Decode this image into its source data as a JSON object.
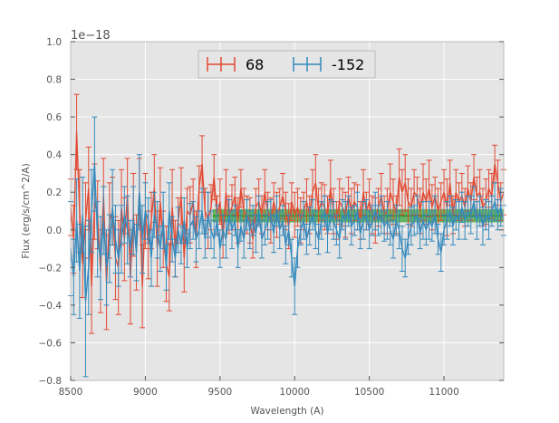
{
  "chart_data": {
    "type": "line",
    "title": "",
    "xlabel": "Wavelength (A)",
    "ylabel": "Flux (erg/s/cm^2/A)",
    "offset_text": "1e−18",
    "xlim": [
      8500,
      11400
    ],
    "ylim": [
      -0.8,
      1.0
    ],
    "y_scale_exponent": -18,
    "x_ticks": [
      8500,
      9000,
      9500,
      10000,
      10500,
      11000
    ],
    "x_tick_labels": [
      "8500",
      "9000",
      "9500",
      "10000",
      "10500",
      "11000"
    ],
    "y_ticks": [
      -0.8,
      -0.6,
      -0.4,
      -0.2,
      0.0,
      0.2,
      0.4,
      0.6,
      0.8,
      1.0
    ],
    "y_tick_labels": [
      "−0.8",
      "−0.6",
      "−0.4",
      "−0.2",
      "0.0",
      "0.2",
      "0.4",
      "0.6",
      "0.8",
      "1.0"
    ],
    "grid": true,
    "legend_position": "top-center",
    "band": {
      "x_start": 9450,
      "x_end": 11400,
      "y_low": 0.04,
      "y_high": 0.11,
      "center": 0.075,
      "color": "#2ca02c"
    },
    "series": [
      {
        "name": "68",
        "color": "#E24A33",
        "x": [
          8500,
          8520,
          8540,
          8560,
          8580,
          8600,
          8620,
          8640,
          8660,
          8680,
          8700,
          8720,
          8740,
          8760,
          8780,
          8800,
          8820,
          8840,
          8860,
          8880,
          8900,
          8920,
          8940,
          8960,
          8980,
          9000,
          9020,
          9040,
          9060,
          9080,
          9100,
          9120,
          9140,
          9160,
          9180,
          9200,
          9220,
          9240,
          9260,
          9280,
          9300,
          9320,
          9340,
          9360,
          9380,
          9400,
          9420,
          9440,
          9460,
          9480,
          9500,
          9520,
          9540,
          9560,
          9580,
          9600,
          9620,
          9640,
          9660,
          9680,
          9700,
          9720,
          9740,
          9760,
          9780,
          9800,
          9820,
          9840,
          9860,
          9880,
          9900,
          9920,
          9940,
          9960,
          9980,
          10000,
          10020,
          10040,
          10060,
          10080,
          10100,
          10120,
          10140,
          10160,
          10180,
          10200,
          10220,
          10240,
          10260,
          10280,
          10300,
          10320,
          10340,
          10360,
          10380,
          10400,
          10420,
          10440,
          10460,
          10480,
          10500,
          10520,
          10540,
          10560,
          10580,
          10600,
          10620,
          10640,
          10660,
          10680,
          10700,
          10720,
          10740,
          10760,
          10780,
          10800,
          10820,
          10840,
          10860,
          10880,
          10900,
          10920,
          10940,
          10960,
          10980,
          11000,
          11020,
          11040,
          11060,
          11080,
          11100,
          11120,
          11140,
          11160,
          11180,
          11200,
          11220,
          11240,
          11260,
          11280,
          11300,
          11320,
          11340,
          11360,
          11380,
          11400
        ],
        "y": [
          0.12,
          -0.05,
          0.52,
          0.1,
          -0.18,
          0.05,
          0.22,
          -0.3,
          0.15,
          0.08,
          -0.22,
          0.18,
          -0.28,
          0.05,
          0.1,
          -0.15,
          -0.2,
          0.12,
          -0.05,
          0.18,
          -0.25,
          0.08,
          -0.12,
          0.2,
          -0.3,
          0.1,
          -0.08,
          0.05,
          0.22,
          -0.1,
          0.15,
          -0.05,
          -0.18,
          -0.25,
          0.12,
          -0.1,
          0.05,
          0.18,
          -0.15,
          0.1,
          0.08,
          0.15,
          -0.05,
          0.22,
          0.35,
          0.1,
          0.05,
          0.12,
          0.28,
          0.08,
          0.15,
          -0.05,
          0.2,
          0.08,
          0.12,
          0.18,
          0.05,
          0.22,
          0.1,
          0.08,
          0.05,
          -0.05,
          0.12,
          0.15,
          0.08,
          0.2,
          0.1,
          0.05,
          0.15,
          0.08,
          0.12,
          0.18,
          0.1,
          0.02,
          0.15,
          0.08,
          0.12,
          0.05,
          0.1,
          0.15,
          0.08,
          0.2,
          0.25,
          0.1,
          0.15,
          0.12,
          0.08,
          0.22,
          0.1,
          0.05,
          0.15,
          0.12,
          0.08,
          0.18,
          0.1,
          0.15,
          0.12,
          0.05,
          0.2,
          0.1,
          0.15,
          0.08,
          0.05,
          0.12,
          0.18,
          0.08,
          0.1,
          0.2,
          0.15,
          0.08,
          0.28,
          0.2,
          0.25,
          0.15,
          0.12,
          0.2,
          0.18,
          0.1,
          0.2,
          0.15,
          0.22,
          0.12,
          0.18,
          0.1,
          0.15,
          0.2,
          0.12,
          0.25,
          0.08,
          0.2,
          0.15,
          0.18,
          0.12,
          0.22,
          0.15,
          0.28,
          0.18,
          0.2,
          0.12,
          0.15,
          0.22,
          0.18,
          0.35,
          0.25,
          0.15,
          0.2
        ],
        "err": [
          0.15,
          0.18,
          0.2,
          0.22,
          0.18,
          0.2,
          0.22,
          0.25,
          0.2,
          0.18,
          0.22,
          0.2,
          0.25,
          0.2,
          0.18,
          0.22,
          0.25,
          0.2,
          0.22,
          0.2,
          0.25,
          0.22,
          0.2,
          0.18,
          0.22,
          0.2,
          0.18,
          0.15,
          0.18,
          0.2,
          0.18,
          0.15,
          0.2,
          0.18,
          0.2,
          0.15,
          0.12,
          0.15,
          0.18,
          0.12,
          0.15,
          0.12,
          0.15,
          0.12,
          0.15,
          0.12,
          0.15,
          0.12,
          0.12,
          0.1,
          0.12,
          0.1,
          0.12,
          0.1,
          0.12,
          0.1,
          0.12,
          0.1,
          0.12,
          0.1,
          0.12,
          0.1,
          0.1,
          0.12,
          0.1,
          0.12,
          0.1,
          0.12,
          0.1,
          0.12,
          0.1,
          0.12,
          0.1,
          0.12,
          0.1,
          0.12,
          0.1,
          0.12,
          0.1,
          0.12,
          0.1,
          0.12,
          0.15,
          0.12,
          0.1,
          0.12,
          0.1,
          0.15,
          0.12,
          0.1,
          0.12,
          0.1,
          0.12,
          0.1,
          0.12,
          0.1,
          0.12,
          0.1,
          0.12,
          0.1,
          0.12,
          0.1,
          0.12,
          0.1,
          0.12,
          0.1,
          0.12,
          0.15,
          0.12,
          0.1,
          0.15,
          0.12,
          0.15,
          0.12,
          0.1,
          0.12,
          0.1,
          0.12,
          0.15,
          0.12,
          0.15,
          0.12,
          0.1,
          0.12,
          0.1,
          0.12,
          0.15,
          0.12,
          0.1,
          0.12,
          0.1,
          0.12,
          0.1,
          0.12,
          0.1,
          0.12,
          0.1,
          0.12,
          0.1,
          0.12,
          0.1,
          0.12,
          0.1,
          0.12,
          0.1,
          0.12
        ]
      },
      {
        "name": "-152",
        "color": "#348ABD",
        "x": [
          8500,
          8520,
          8540,
          8560,
          8580,
          8600,
          8620,
          8640,
          8660,
          8680,
          8700,
          8720,
          8740,
          8760,
          8780,
          8800,
          8820,
          8840,
          8860,
          8880,
          8900,
          8920,
          8940,
          8960,
          8980,
          9000,
          9020,
          9040,
          9060,
          9080,
          9100,
          9120,
          9140,
          9160,
          9180,
          9200,
          9220,
          9240,
          9260,
          9280,
          9300,
          9320,
          9340,
          9360,
          9380,
          9400,
          9420,
          9440,
          9460,
          9480,
          9500,
          9520,
          9540,
          9560,
          9580,
          9600,
          9620,
          9640,
          9660,
          9680,
          9700,
          9720,
          9740,
          9760,
          9780,
          9800,
          9820,
          9840,
          9860,
          9880,
          9900,
          9920,
          9940,
          9960,
          9980,
          10000,
          10020,
          10040,
          10060,
          10080,
          10100,
          10120,
          10140,
          10160,
          10180,
          10200,
          10220,
          10240,
          10260,
          10280,
          10300,
          10320,
          10340,
          10360,
          10380,
          10400,
          10420,
          10440,
          10460,
          10480,
          10500,
          10520,
          10540,
          10560,
          10580,
          10600,
          10620,
          10640,
          10660,
          10680,
          10700,
          10720,
          10740,
          10760,
          10780,
          10800,
          10820,
          10840,
          10860,
          10880,
          10900,
          10920,
          10940,
          10960,
          10980,
          11000,
          11020,
          11040,
          11060,
          11080,
          11100,
          11120,
          11140,
          11160,
          11180,
          11200,
          11220,
          11240,
          11260,
          11280,
          11300,
          11320,
          11340,
          11360,
          11380,
          11400
        ],
        "y": [
          -0.1,
          -0.25,
          0.05,
          -0.22,
          0.08,
          -0.38,
          -0.2,
          0.1,
          0.35,
          -0.05,
          -0.15,
          0.05,
          -0.2,
          -0.1,
          0.12,
          -0.05,
          -0.15,
          -0.05,
          0.08,
          0.0,
          -0.1,
          0.05,
          -0.12,
          0.2,
          -0.05,
          0.1,
          0.05,
          -0.15,
          0.08,
          0.0,
          -0.1,
          0.05,
          -0.2,
          0.1,
          -0.05,
          -0.15,
          0.0,
          -0.08,
          0.05,
          -0.1,
          0.02,
          0.05,
          -0.05,
          0.0,
          0.1,
          -0.05,
          0.08,
          0.0,
          -0.05,
          0.05,
          -0.1,
          0.0,
          -0.05,
          0.08,
          0.0,
          0.05,
          -0.1,
          0.02,
          -0.05,
          0.08,
          0.0,
          0.05,
          -0.02,
          0.1,
          -0.05,
          0.0,
          0.05,
          0.08,
          -0.02,
          0.1,
          0.0,
          0.05,
          -0.08,
          0.0,
          -0.15,
          -0.3,
          -0.1,
          0.0,
          0.05,
          -0.05,
          0.02,
          0.08,
          0.0,
          -0.05,
          0.05,
          0.1,
          -0.02,
          0.08,
          0.05,
          0.0,
          -0.05,
          0.08,
          0.05,
          0.1,
          0.02,
          0.05,
          0.1,
          -0.02,
          0.05,
          0.08,
          0.0,
          0.05,
          0.1,
          0.05,
          0.08,
          0.02,
          0.05,
          0.0,
          -0.05,
          0.05,
          0.0,
          -0.1,
          -0.15,
          -0.05,
          0.02,
          0.05,
          0.08,
          -0.02,
          0.05,
          0.0,
          0.05,
          0.02,
          0.08,
          -0.05,
          -0.12,
          0.0,
          0.05,
          0.1,
          0.02,
          0.08,
          0.05,
          0.12,
          0.05,
          0.1,
          0.08,
          0.15,
          0.05,
          0.1,
          0.02,
          0.08,
          0.05,
          0.1,
          0.15,
          0.08,
          0.12,
          0.05
        ],
        "err": [
          0.25,
          0.2,
          0.22,
          0.25,
          0.2,
          0.4,
          0.25,
          0.22,
          0.25,
          0.2,
          0.22,
          0.18,
          0.2,
          0.18,
          0.2,
          0.18,
          0.15,
          0.18,
          0.15,
          0.18,
          0.15,
          0.18,
          0.15,
          0.2,
          0.18,
          0.15,
          0.12,
          0.15,
          0.12,
          0.15,
          0.12,
          0.15,
          0.12,
          0.15,
          0.12,
          0.1,
          0.12,
          0.1,
          0.12,
          0.1,
          0.12,
          0.1,
          0.12,
          0.1,
          0.12,
          0.1,
          0.12,
          0.1,
          0.1,
          0.08,
          0.1,
          0.08,
          0.1,
          0.08,
          0.1,
          0.08,
          0.1,
          0.08,
          0.1,
          0.08,
          0.1,
          0.08,
          0.1,
          0.08,
          0.1,
          0.08,
          0.1,
          0.08,
          0.1,
          0.08,
          0.1,
          0.08,
          0.1,
          0.08,
          0.1,
          0.15,
          0.1,
          0.08,
          0.1,
          0.08,
          0.1,
          0.08,
          0.1,
          0.08,
          0.1,
          0.08,
          0.1,
          0.08,
          0.1,
          0.08,
          0.1,
          0.08,
          0.1,
          0.08,
          0.1,
          0.08,
          0.1,
          0.08,
          0.1,
          0.08,
          0.1,
          0.08,
          0.1,
          0.08,
          0.1,
          0.08,
          0.1,
          0.08,
          0.1,
          0.08,
          0.1,
          0.12,
          0.1,
          0.08,
          0.1,
          0.08,
          0.1,
          0.08,
          0.1,
          0.08,
          0.1,
          0.08,
          0.1,
          0.08,
          0.1,
          0.08,
          0.1,
          0.08,
          0.1,
          0.08,
          0.1,
          0.08,
          0.1,
          0.08,
          0.1,
          0.08,
          0.1,
          0.08,
          0.1,
          0.08,
          0.1,
          0.08,
          0.1,
          0.08,
          0.1,
          0.08
        ]
      }
    ]
  }
}
